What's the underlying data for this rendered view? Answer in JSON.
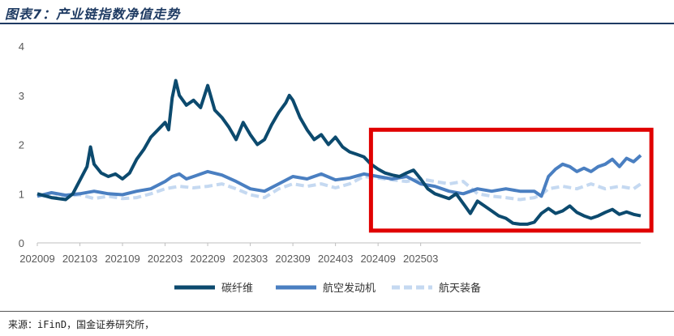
{
  "title": "图表7：产业链指数净值走势",
  "source": "来源：iFinD，国金证券研究所，",
  "chart_data": {
    "type": "line",
    "title": "图表7：产业链指数净值走势",
    "xlabel": "",
    "ylabel": "",
    "ylim": [
      0,
      4
    ],
    "y_ticks": [
      "0",
      "1",
      "2",
      "3",
      "4"
    ],
    "x_ticks": [
      "202009",
      "202103",
      "202109",
      "202203",
      "202209",
      "202303",
      "202309",
      "202403",
      "202409",
      "202503"
    ],
    "legend": "bottom-center",
    "highlight_box": {
      "x_from": "202408",
      "x_to": "202508",
      "y_from": 0.25,
      "y_to": 2.3,
      "color": "#e00000"
    },
    "series": [
      {
        "name": "碳纤维",
        "color": "#0c4a6e",
        "style": "solid",
        "points": [
          [
            0,
            1.0
          ],
          [
            2,
            0.92
          ],
          [
            4,
            0.88
          ],
          [
            5,
            1.0
          ],
          [
            7,
            1.55
          ],
          [
            7.5,
            1.95
          ],
          [
            8,
            1.6
          ],
          [
            9,
            1.42
          ],
          [
            10,
            1.35
          ],
          [
            11,
            1.4
          ],
          [
            12,
            1.3
          ],
          [
            13,
            1.42
          ],
          [
            14,
            1.7
          ],
          [
            15,
            1.9
          ],
          [
            16,
            2.15
          ],
          [
            17,
            2.3
          ],
          [
            18,
            2.45
          ],
          [
            18.5,
            2.3
          ],
          [
            19,
            2.95
          ],
          [
            19.5,
            3.3
          ],
          [
            20,
            3.0
          ],
          [
            21,
            2.8
          ],
          [
            22,
            2.9
          ],
          [
            23,
            2.75
          ],
          [
            24,
            3.2
          ],
          [
            25,
            2.7
          ],
          [
            26,
            2.55
          ],
          [
            27,
            2.35
          ],
          [
            28,
            2.1
          ],
          [
            29,
            2.45
          ],
          [
            30,
            2.2
          ],
          [
            31,
            2.0
          ],
          [
            32,
            2.1
          ],
          [
            33,
            2.4
          ],
          [
            34,
            2.65
          ],
          [
            35,
            2.85
          ],
          [
            35.5,
            3.0
          ],
          [
            36,
            2.9
          ],
          [
            37,
            2.55
          ],
          [
            38,
            2.3
          ],
          [
            39,
            2.1
          ],
          [
            40,
            2.2
          ],
          [
            41,
            2.0
          ],
          [
            42,
            2.15
          ],
          [
            43,
            1.95
          ],
          [
            44,
            1.85
          ],
          [
            45,
            1.8
          ],
          [
            46,
            1.75
          ],
          [
            47,
            1.6
          ],
          [
            48,
            1.5
          ],
          [
            49,
            1.42
          ],
          [
            50,
            1.38
          ],
          [
            51,
            1.35
          ],
          [
            52,
            1.42
          ],
          [
            53,
            1.48
          ],
          [
            54,
            1.3
          ],
          [
            55,
            1.1
          ],
          [
            56,
            1.0
          ],
          [
            57,
            0.95
          ],
          [
            58,
            0.9
          ],
          [
            59,
            1.0
          ],
          [
            60,
            0.8
          ],
          [
            61,
            0.6
          ],
          [
            62,
            0.85
          ],
          [
            63,
            0.75
          ],
          [
            64,
            0.65
          ],
          [
            65,
            0.55
          ],
          [
            66,
            0.5
          ],
          [
            67,
            0.4
          ],
          [
            68,
            0.38
          ],
          [
            69,
            0.38
          ],
          [
            70,
            0.42
          ],
          [
            71,
            0.6
          ],
          [
            72,
            0.7
          ],
          [
            73,
            0.6
          ],
          [
            74,
            0.65
          ],
          [
            75,
            0.75
          ],
          [
            76,
            0.62
          ],
          [
            77,
            0.55
          ],
          [
            78,
            0.5
          ],
          [
            79,
            0.55
          ],
          [
            80,
            0.62
          ],
          [
            81,
            0.68
          ],
          [
            82,
            0.58
          ],
          [
            83,
            0.63
          ],
          [
            84,
            0.58
          ],
          [
            85,
            0.55
          ]
        ]
      },
      {
        "name": "航空发动机",
        "color": "#4a7fc1",
        "style": "solid",
        "points": [
          [
            0,
            0.95
          ],
          [
            2,
            1.02
          ],
          [
            4,
            0.97
          ],
          [
            6,
            1.0
          ],
          [
            8,
            1.05
          ],
          [
            10,
            1.0
          ],
          [
            12,
            0.98
          ],
          [
            14,
            1.05
          ],
          [
            16,
            1.1
          ],
          [
            18,
            1.25
          ],
          [
            19,
            1.35
          ],
          [
            20,
            1.4
          ],
          [
            21,
            1.3
          ],
          [
            22,
            1.35
          ],
          [
            24,
            1.45
          ],
          [
            26,
            1.38
          ],
          [
            28,
            1.25
          ],
          [
            30,
            1.1
          ],
          [
            32,
            1.05
          ],
          [
            34,
            1.2
          ],
          [
            36,
            1.35
          ],
          [
            38,
            1.3
          ],
          [
            40,
            1.4
          ],
          [
            42,
            1.28
          ],
          [
            44,
            1.32
          ],
          [
            46,
            1.4
          ],
          [
            48,
            1.35
          ],
          [
            50,
            1.3
          ],
          [
            52,
            1.35
          ],
          [
            54,
            1.2
          ],
          [
            56,
            1.15
          ],
          [
            58,
            1.05
          ],
          [
            60,
            1.0
          ],
          [
            62,
            1.1
          ],
          [
            64,
            1.05
          ],
          [
            66,
            1.1
          ],
          [
            68,
            1.05
          ],
          [
            70,
            1.05
          ],
          [
            71,
            0.95
          ],
          [
            72,
            1.35
          ],
          [
            73,
            1.5
          ],
          [
            74,
            1.6
          ],
          [
            75,
            1.55
          ],
          [
            76,
            1.45
          ],
          [
            77,
            1.52
          ],
          [
            78,
            1.45
          ],
          [
            79,
            1.55
          ],
          [
            80,
            1.6
          ],
          [
            81,
            1.7
          ],
          [
            82,
            1.55
          ],
          [
            83,
            1.72
          ],
          [
            84,
            1.65
          ],
          [
            85,
            1.78
          ]
        ]
      },
      {
        "name": "航天装备",
        "color": "#c5d9f1",
        "style": "dashed",
        "points": [
          [
            0,
            0.98
          ],
          [
            2,
            0.92
          ],
          [
            4,
            0.95
          ],
          [
            6,
            0.98
          ],
          [
            8,
            0.9
          ],
          [
            10,
            0.95
          ],
          [
            12,
            0.9
          ],
          [
            14,
            0.92
          ],
          [
            16,
            1.0
          ],
          [
            18,
            1.1
          ],
          [
            20,
            1.15
          ],
          [
            22,
            1.12
          ],
          [
            24,
            1.15
          ],
          [
            26,
            1.2
          ],
          [
            28,
            1.1
          ],
          [
            30,
            0.98
          ],
          [
            32,
            0.92
          ],
          [
            34,
            1.1
          ],
          [
            36,
            1.2
          ],
          [
            38,
            1.15
          ],
          [
            40,
            1.2
          ],
          [
            42,
            1.12
          ],
          [
            44,
            1.2
          ],
          [
            46,
            1.35
          ],
          [
            48,
            1.32
          ],
          [
            50,
            1.28
          ],
          [
            52,
            1.25
          ],
          [
            54,
            1.3
          ],
          [
            56,
            1.25
          ],
          [
            58,
            1.2
          ],
          [
            60,
            1.25
          ],
          [
            62,
            1.0
          ],
          [
            64,
            0.95
          ],
          [
            66,
            0.92
          ],
          [
            68,
            0.88
          ],
          [
            70,
            0.92
          ],
          [
            71,
            0.98
          ],
          [
            72,
            1.1
          ],
          [
            74,
            1.15
          ],
          [
            76,
            1.1
          ],
          [
            78,
            1.2
          ],
          [
            80,
            1.1
          ],
          [
            82,
            1.15
          ],
          [
            84,
            1.1
          ],
          [
            85,
            1.2
          ]
        ]
      }
    ]
  }
}
